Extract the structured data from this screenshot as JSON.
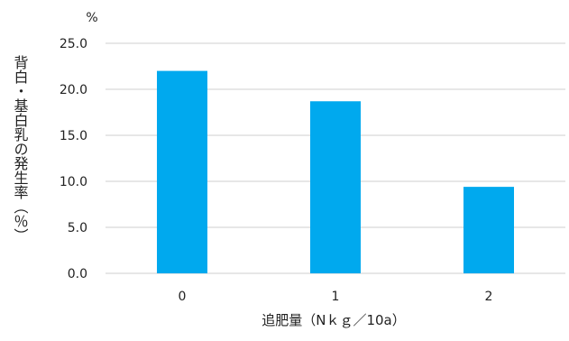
{
  "chart_data": {
    "type": "bar",
    "categories": [
      "0",
      "1",
      "2"
    ],
    "values": [
      22.0,
      18.7,
      9.4
    ],
    "ylim": [
      0,
      25
    ],
    "yticks": [
      0,
      5,
      10,
      15,
      20,
      25
    ],
    "ytick_labels": [
      "0.0",
      "5.0",
      "10.0",
      "15.0",
      "20.0",
      "25.0"
    ],
    "ylabel": "背白・基白乳の発生率（％）",
    "yunit": "%",
    "xlabel": "追肥量（Nｋｇ／10a）",
    "bar_color": "#00a9ee",
    "grid_color": "#cfcfcf",
    "grid": true,
    "legend": "none"
  }
}
